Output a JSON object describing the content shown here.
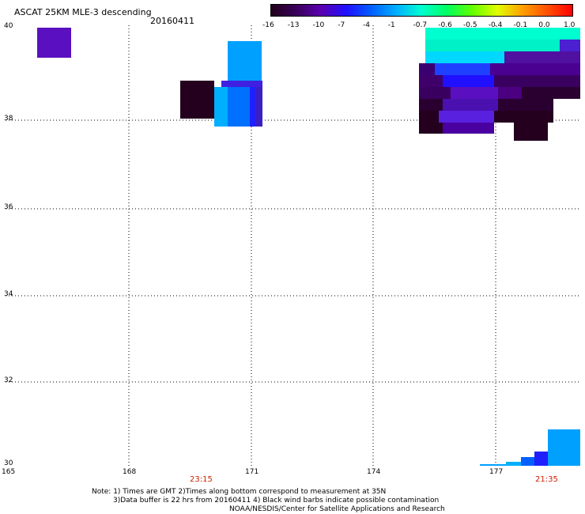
{
  "header": {
    "title": "ASCAT 25KM MLE-3 descending",
    "date": "20160411"
  },
  "colorbar": {
    "ticks": [
      "-16",
      "-13",
      "-10",
      "-7",
      "-4",
      "-1",
      "-0.7",
      "-0.6",
      "-0.5",
      "-0.4",
      "-0.1",
      "0.0",
      "1.0"
    ],
    "colors": [
      "#200018",
      "#3a005a",
      "#5a00b0",
      "#2010ff",
      "#0060ff",
      "#00b0ff",
      "#00ffd0",
      "#00ff60",
      "#60ff00",
      "#e0ff00",
      "#ffa000",
      "#ff5000",
      "#ff0000"
    ]
  },
  "axes": {
    "lat_labels": [
      "40",
      "38",
      "36",
      "34",
      "32",
      "30"
    ],
    "lon_labels": [
      "165",
      "168",
      "171",
      "174",
      "177"
    ],
    "time_labels": [
      "23:15",
      "21:35"
    ]
  },
  "notes": {
    "line1": "Note: 1) Times are GMT 2)Times along bottom correspond to measurement at 35N",
    "line2": "3)Data buffer is 22 hrs from 20160411 4) Black wind barbs indicate possible contamination",
    "line3": "NOAA/NESDIS/Center for Satellite Applications and Research"
  },
  "colors": {
    "deep_purple": "#2a0030",
    "purple": "#5a10c0",
    "blue": "#2020ff",
    "sky_blue": "#00a0ff",
    "aqua": "#00ffd0"
  }
}
